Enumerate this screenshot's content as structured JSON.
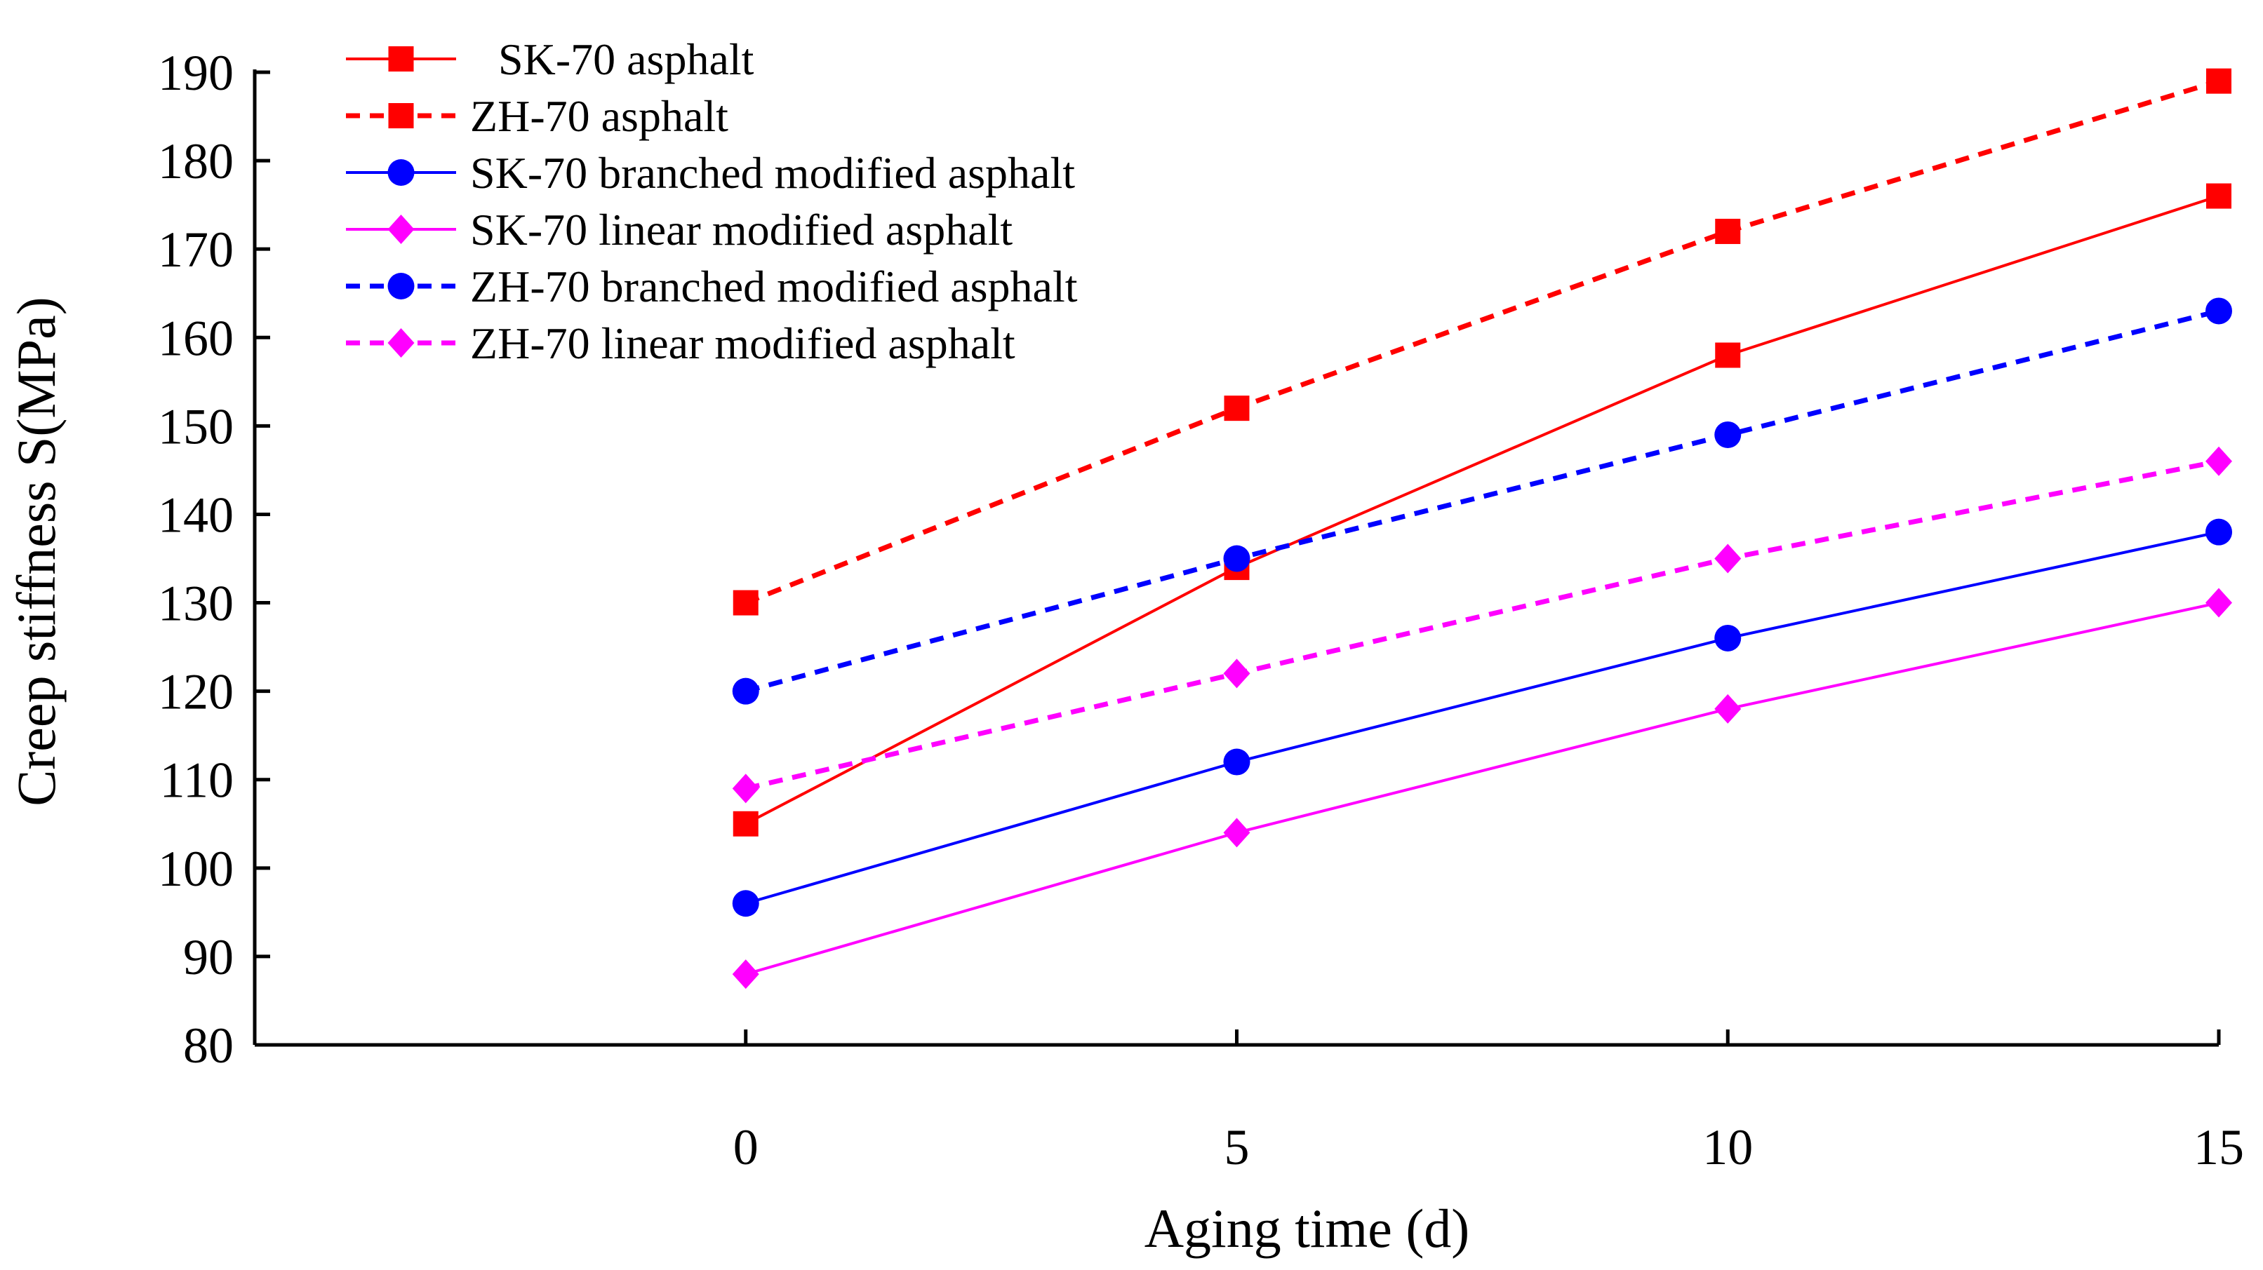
{
  "chart_data": {
    "type": "line",
    "title": "",
    "xlabel": "Aging time (d)",
    "ylabel": "Creep stiffness S(MPa)",
    "x": [
      0,
      5,
      10,
      15
    ],
    "xticks": [
      "0",
      "5",
      "10",
      "15"
    ],
    "xlim": [
      -5,
      15
    ],
    "ylim": [
      80,
      190
    ],
    "yticks": [
      "80",
      "90",
      "100",
      "110",
      "120",
      "130",
      "140",
      "150",
      "160",
      "170",
      "180",
      "190"
    ],
    "grid": false,
    "legend_position": "top-left",
    "series": [
      {
        "name": "SK-70 asphalt",
        "values": [
          105,
          134,
          158,
          176
        ],
        "color": "#ff0000",
        "line": "solid",
        "marker": "square"
      },
      {
        "name": "ZH-70 asphalt",
        "values": [
          130,
          152,
          172,
          189
        ],
        "color": "#ff0000",
        "line": "dotted",
        "marker": "square"
      },
      {
        "name": "SK-70 branched modified asphalt",
        "values": [
          96,
          112,
          126,
          138
        ],
        "color": "#0000ff",
        "line": "solid",
        "marker": "circle"
      },
      {
        "name": "SK-70 linear modified asphalt",
        "values": [
          88,
          104,
          118,
          130
        ],
        "color": "#ff00ff",
        "line": "solid",
        "marker": "diamond"
      },
      {
        "name": "ZH-70 branched modified asphalt",
        "values": [
          120,
          135,
          149,
          163
        ],
        "color": "#0000ff",
        "line": "dotted",
        "marker": "circle"
      },
      {
        "name": "ZH-70 linear modified asphalt",
        "values": [
          109,
          122,
          135,
          146
        ],
        "color": "#ff00ff",
        "line": "dotted",
        "marker": "diamond"
      }
    ]
  }
}
